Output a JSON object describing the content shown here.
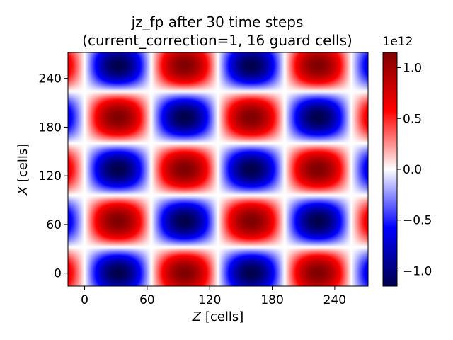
{
  "chart_data": {
    "type": "heatmap",
    "title_line1": "jz_fp after 30 time steps",
    "title_line2": "(current_correction=1, 16 guard cells)",
    "xlabel_italic": "Z",
    "xlabel_rest": " [cells]",
    "ylabel_italic": "X",
    "ylabel_rest": " [cells]",
    "xlim": [
      -16,
      272
    ],
    "ylim": [
      -16,
      272
    ],
    "xticks": [
      0,
      60,
      120,
      180,
      240
    ],
    "xtick_labels": [
      "0",
      "60",
      "120",
      "180",
      "240"
    ],
    "yticks": [
      0,
      60,
      120,
      180,
      240
    ],
    "ytick_labels": [
      "0",
      "60",
      "120",
      "180",
      "240"
    ],
    "field": {
      "description": "jz ≈ -A·sin(2π z/128)·cos(2π x/128)",
      "amplitude": 1150000000000.0,
      "period_z_cells": 128,
      "period_x_cells": 128,
      "guard_cells": 16,
      "domain_cells": [
        0,
        256
      ]
    },
    "colorbar": {
      "cmap": "seismic",
      "vmin": -1150000000000.0,
      "vmax": 1150000000000.0,
      "ticks": [
        1000000000000.0,
        500000000000.0,
        0.0,
        -500000000000.0,
        -1000000000000.0
      ],
      "tick_labels": [
        "1.0",
        "0.5",
        "0.0",
        "−0.5",
        "−1.0"
      ],
      "offset_label": "1e12"
    }
  }
}
